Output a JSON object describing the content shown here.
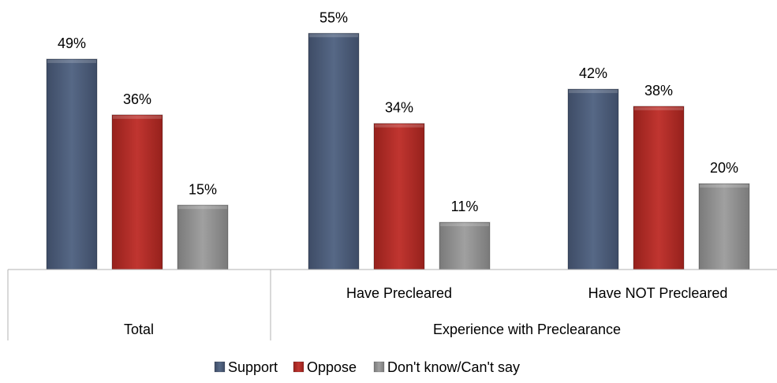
{
  "chart_data": {
    "type": "bar",
    "categories": [
      "",
      "Have Precleared",
      "Have NOT Precleared"
    ],
    "groups": [
      {
        "label": "Total",
        "categories": [
          0
        ]
      },
      {
        "label": "Experience with Preclearance",
        "categories": [
          1,
          2
        ]
      }
    ],
    "series": [
      {
        "name": "Support",
        "values": [
          49,
          55,
          42
        ],
        "labels": [
          "49%",
          "55%",
          "42%"
        ],
        "color": "#4a5a76"
      },
      {
        "name": "Oppose",
        "values": [
          36,
          34,
          38
        ],
        "labels": [
          "36%",
          "34%",
          "38%"
        ],
        "color": "#b02a25"
      },
      {
        "name": "Don't know/Can't say",
        "values": [
          15,
          11,
          20
        ],
        "labels": [
          "15%",
          "11%",
          "20%"
        ],
        "color": "#8c8c8c"
      }
    ],
    "ylim": [
      0,
      60
    ],
    "grid": false,
    "legend_position": "bottom"
  }
}
